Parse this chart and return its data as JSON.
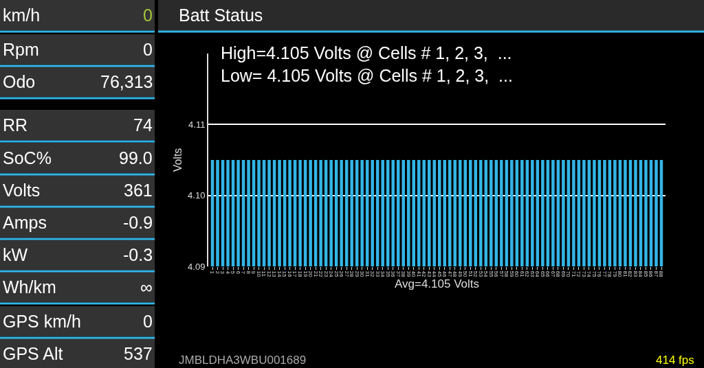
{
  "chart_data": {
    "type": "bar",
    "title": "High=4.105 Volts @ Cells # 1, 2, 3,  ...\nLow= 4.105 Volts @ Cells # 1, 2, 3,  ...",
    "xlabel": "Avg=4.105 Volts",
    "ylabel": "Volts",
    "categories": [
      "1",
      "2",
      "3",
      "4",
      "5",
      "6",
      "7",
      "8",
      "9",
      "10",
      "11",
      "12",
      "13",
      "14",
      "15",
      "16",
      "17",
      "18",
      "19",
      "20",
      "21",
      "22",
      "23",
      "24",
      "25",
      "26",
      "27",
      "28",
      "29",
      "30",
      "31",
      "32",
      "33",
      "34",
      "35",
      "36",
      "37",
      "38",
      "39",
      "40",
      "41",
      "42",
      "43",
      "44",
      "45",
      "46",
      "47",
      "48",
      "49",
      "50",
      "51",
      "52",
      "53",
      "54",
      "55",
      "56",
      "57",
      "58",
      "59",
      "60",
      "61",
      "62",
      "63",
      "64",
      "65",
      "66",
      "67",
      "68",
      "69",
      "70",
      "71",
      "72",
      "73",
      "74",
      "75",
      "76",
      "77",
      "78",
      "79",
      "80",
      "81",
      "82",
      "83",
      "84",
      "85",
      "86",
      "87",
      "88"
    ],
    "values": [
      4.105,
      4.105,
      4.105,
      4.105,
      4.105,
      4.105,
      4.105,
      4.105,
      4.105,
      4.105,
      4.105,
      4.105,
      4.105,
      4.105,
      4.105,
      4.105,
      4.105,
      4.105,
      4.105,
      4.105,
      4.105,
      4.105,
      4.105,
      4.105,
      4.105,
      4.105,
      4.105,
      4.105,
      4.105,
      4.105,
      4.105,
      4.105,
      4.105,
      4.105,
      4.105,
      4.105,
      4.105,
      4.105,
      4.105,
      4.105,
      4.105,
      4.105,
      4.105,
      4.105,
      4.105,
      4.105,
      4.105,
      4.105,
      4.105,
      4.105,
      4.105,
      4.105,
      4.105,
      4.105,
      4.105,
      4.105,
      4.105,
      4.105,
      4.105,
      4.105,
      4.105,
      4.105,
      4.105,
      4.105,
      4.105,
      4.105,
      4.105,
      4.105,
      4.105,
      4.105,
      4.105,
      4.105,
      4.105,
      4.105,
      4.105,
      4.105,
      4.105,
      4.105,
      4.105,
      4.105,
      4.105,
      4.105,
      4.105,
      4.105,
      4.105,
      4.105,
      4.105,
      4.105
    ],
    "color": "#33b5e5",
    "ylim": [
      4.09,
      4.12
    ],
    "yticks": [
      4.09,
      {
        "value": 4.1,
        "label": "4.10"
      },
      4.11
    ],
    "grid": "y",
    "legend": false,
    "annotations": [
      "km/h",
      "0",
      "Rpm",
      "0",
      "Odo",
      "76,313",
      "RR",
      "74",
      "SoC%",
      "99.0",
      "Volts",
      "361",
      "Amps",
      "-0.9",
      "kW",
      "-0.3",
      "Wh/km",
      "∞",
      "GPS km/h",
      "0",
      "GPS Alt",
      "537",
      "Batt Status",
      "JMBLDHA3WBU001689",
      "414 fps"
    ]
  }
}
